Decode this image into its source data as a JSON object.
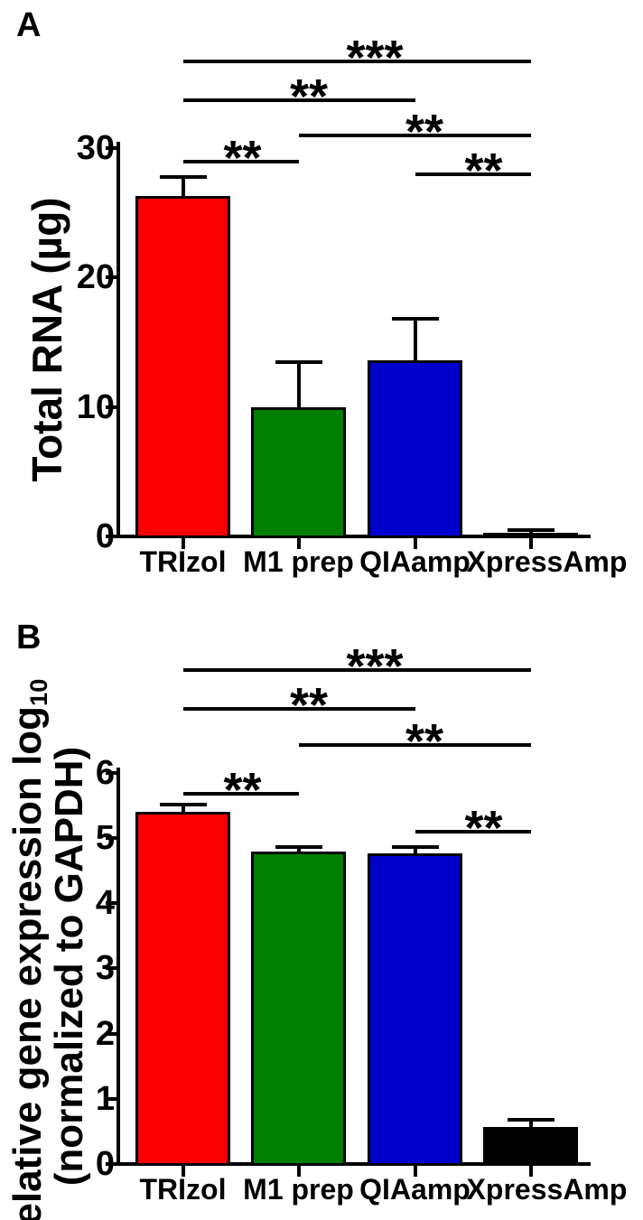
{
  "figure": {
    "type": "two-panel bar figure",
    "background": "#ffffff",
    "ink_color": "#000000"
  },
  "chart_data": [
    {
      "type": "bar",
      "panel": "A",
      "ylabel": "Total RNA (µg)",
      "xlabel": "",
      "categories": [
        "TRIzol",
        "M1 prep",
        "QIAamp",
        "XpressAmp"
      ],
      "values": [
        26.3,
        10.0,
        13.6,
        0.3
      ],
      "errors_plus": [
        1.5,
        3.5,
        3.2,
        0.18
      ],
      "error_bars": "upper whisker only",
      "bar_colors": [
        "#fb0000",
        "#008000",
        "#0000cd",
        "#000000"
      ],
      "yticks": [
        0,
        10,
        20,
        30
      ],
      "ylim": [
        0,
        30
      ],
      "grid": false,
      "legend": false,
      "significance": [
        {
          "group1": "TRIzol",
          "group2": "XpressAmp",
          "label": "***"
        },
        {
          "group1": "TRIzol",
          "group2": "QIAamp",
          "label": "**"
        },
        {
          "group1": "M1 prep",
          "group2": "XpressAmp",
          "label": "**"
        },
        {
          "group1": "TRIzol",
          "group2": "M1 prep",
          "label": "**"
        },
        {
          "group1": "QIAamp",
          "group2": "XpressAmp",
          "label": "**"
        }
      ]
    },
    {
      "type": "bar",
      "panel": "B",
      "ylabel_line1": "Relative gene expression log",
      "ylabel_line1_sub": "10",
      "ylabel_line2": "(normalized to GAPDH)",
      "xlabel": "",
      "categories": [
        "TRIzol",
        "M1 prep",
        "QIAamp",
        "XpressAmp"
      ],
      "values": [
        5.4,
        4.8,
        4.77,
        0.57
      ],
      "errors_plus": [
        0.12,
        0.06,
        0.1,
        0.11
      ],
      "error_bars": "upper whisker only",
      "bar_colors": [
        "#fb0000",
        "#008000",
        "#0000cd",
        "#000000"
      ],
      "yticks": [
        0,
        1,
        2,
        3,
        4,
        5,
        6
      ],
      "ylim": [
        0,
        6
      ],
      "grid": false,
      "legend": false,
      "significance": [
        {
          "group1": "TRIzol",
          "group2": "XpressAmp",
          "label": "***"
        },
        {
          "group1": "TRIzol",
          "group2": "QIAamp",
          "label": "**"
        },
        {
          "group1": "M1 prep",
          "group2": "XpressAmp",
          "label": "**"
        },
        {
          "group1": "TRIzol",
          "group2": "M1 prep",
          "label": "**"
        },
        {
          "group1": "QIAamp",
          "group2": "XpressAmp",
          "label": "**"
        }
      ]
    }
  ]
}
